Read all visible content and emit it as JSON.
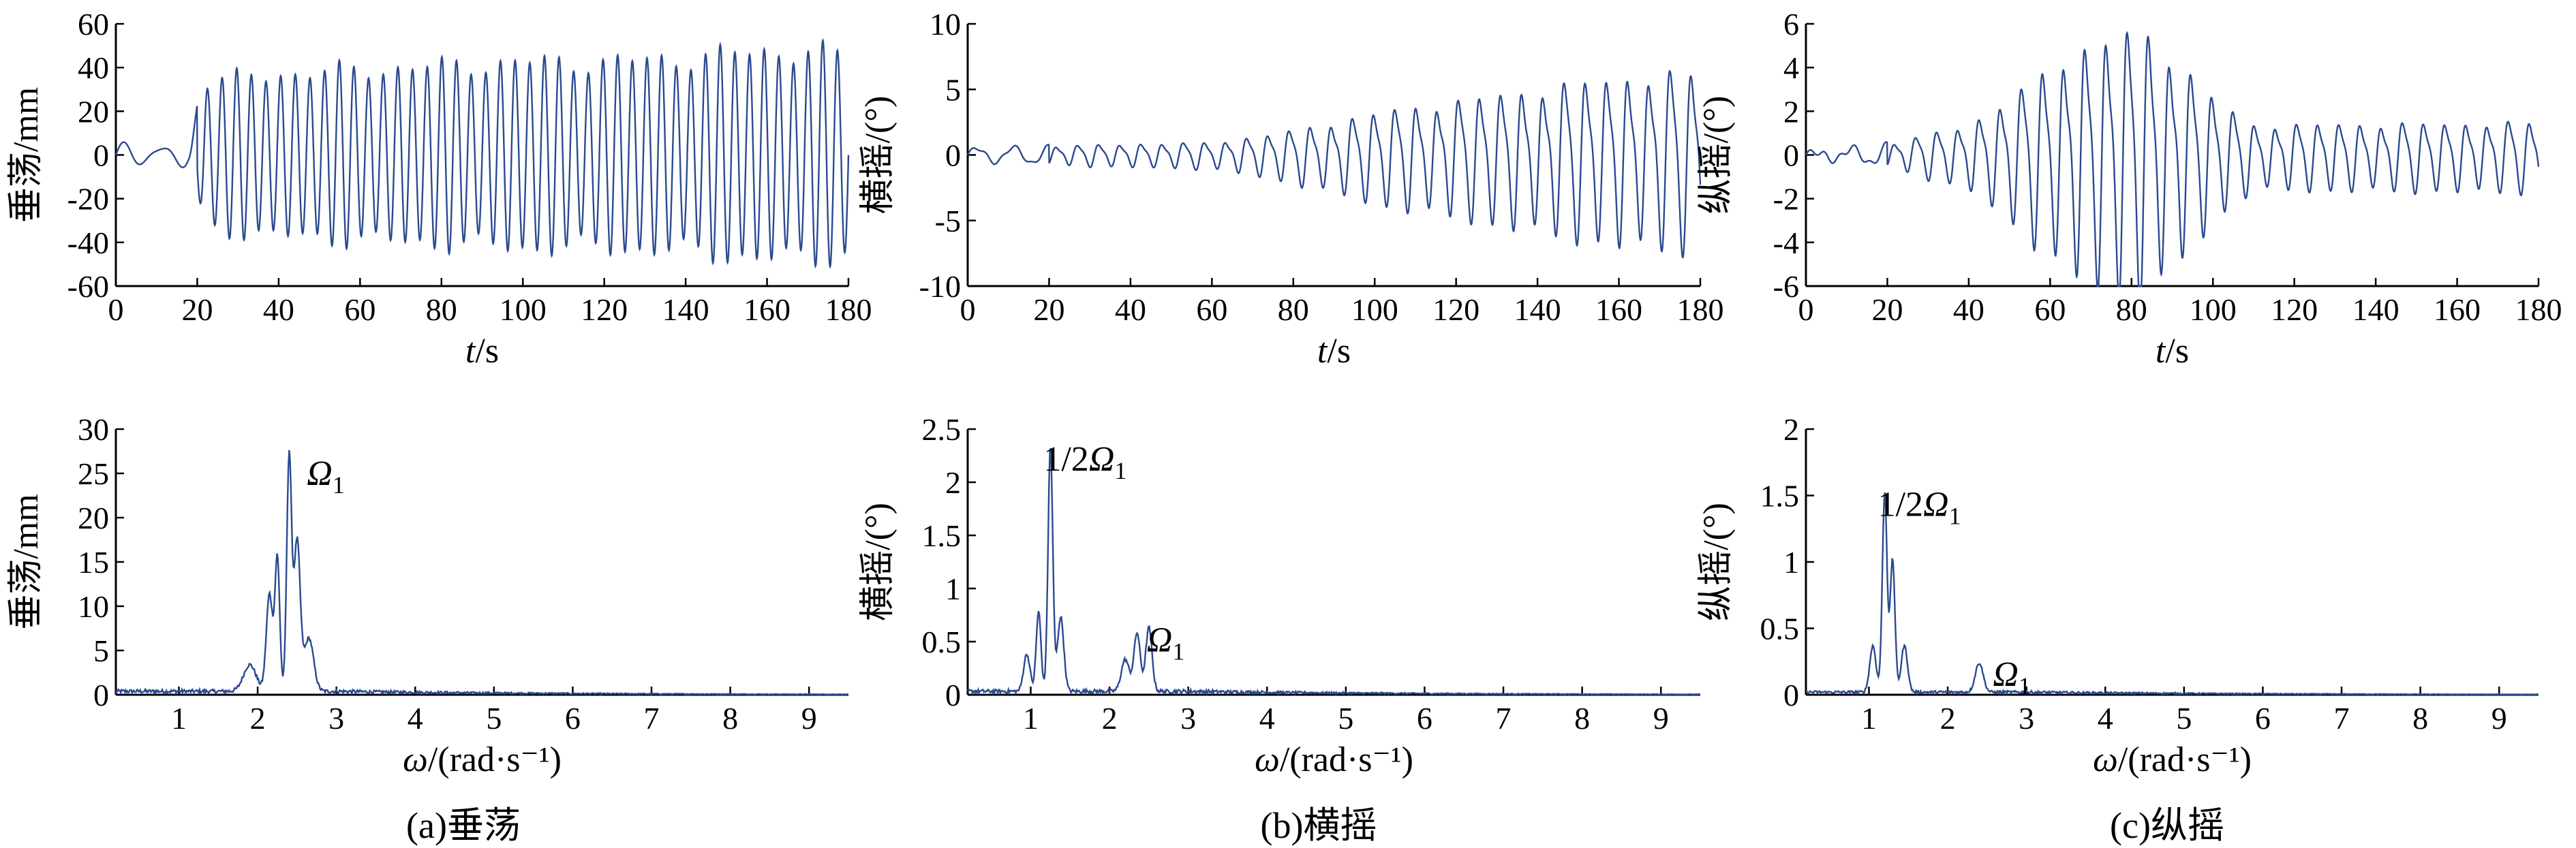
{
  "chart_data": [
    {
      "id": "heave-time",
      "type": "line",
      "x_range": [
        0,
        180
      ],
      "y_range": [
        -60,
        60
      ],
      "x_ticks": [
        "0",
        "20",
        "40",
        "60",
        "80",
        "100",
        "120",
        "140",
        "160",
        "180"
      ],
      "y_ticks": [
        "-60",
        "-40",
        "-20",
        "0",
        "20",
        "40",
        "60"
      ],
      "xlabel_italic": "t",
      "xlabel_rest": "/s",
      "ylabel": "垂荡/mm",
      "color": "#2b4a8f",
      "envelope": [
        [
          0,
          4
        ],
        [
          18,
          5
        ],
        [
          22,
          38
        ],
        [
          40,
          42
        ],
        [
          60,
          44
        ],
        [
          80,
          46
        ],
        [
          100,
          48
        ],
        [
          120,
          48
        ],
        [
          140,
          50
        ],
        [
          160,
          54
        ],
        [
          180,
          52
        ]
      ],
      "period": 3.6
    },
    {
      "id": "roll-time",
      "type": "line",
      "x_range": [
        0,
        180
      ],
      "y_range": [
        -10,
        10
      ],
      "x_ticks": [
        "0",
        "20",
        "40",
        "60",
        "80",
        "100",
        "120",
        "140",
        "160",
        "180"
      ],
      "y_ticks": [
        "-10",
        "-5",
        "0",
        "5",
        "10"
      ],
      "xlabel_italic": "t",
      "xlabel_rest": "/s",
      "ylabel": "横摇/(°)",
      "color": "#2b4a8f",
      "envelope": [
        [
          0,
          0.5
        ],
        [
          20,
          0.7
        ],
        [
          40,
          0.9
        ],
        [
          60,
          1.0
        ],
        [
          80,
          2.0
        ],
        [
          100,
          3.5
        ],
        [
          120,
          4.5
        ],
        [
          140,
          5.5
        ],
        [
          160,
          6.5
        ],
        [
          180,
          6.8
        ]
      ],
      "period": 5.2
    },
    {
      "id": "pitch-time",
      "type": "line",
      "x_range": [
        0,
        180
      ],
      "y_range": [
        -6,
        6
      ],
      "x_ticks": [
        "0",
        "20",
        "40",
        "60",
        "80",
        "100",
        "120",
        "140",
        "160",
        "180"
      ],
      "y_ticks": [
        "-6",
        "-4",
        "-2",
        "0",
        "2",
        "4",
        "6"
      ],
      "xlabel_italic": "t",
      "xlabel_rest": "/s",
      "ylabel": "纵摇/(°)",
      "color": "#2b4a8f",
      "envelope": [
        [
          0,
          0.1
        ],
        [
          20,
          0.5
        ],
        [
          40,
          1.5
        ],
        [
          55,
          3.5
        ],
        [
          65,
          5.2
        ],
        [
          75,
          6.0
        ],
        [
          85,
          6.0
        ],
        [
          95,
          4.0
        ],
        [
          102,
          2.5
        ],
        [
          110,
          1.5
        ],
        [
          180,
          1.6
        ]
      ],
      "period": 5.2
    },
    {
      "id": "heave-spectrum",
      "type": "line",
      "x_range": [
        0.2,
        9.5
      ],
      "y_range": [
        0,
        30
      ],
      "x_ticks": [
        "1",
        "2",
        "3",
        "4",
        "5",
        "6",
        "7",
        "8",
        "9"
      ],
      "y_ticks": [
        "0",
        "5",
        "10",
        "15",
        "20",
        "25",
        "30"
      ],
      "xlabel": "ω/(rad·s⁻¹)",
      "ylabel": "垂荡/mm",
      "color": "#2b4a8f",
      "peaks": [
        [
          1.9,
          3,
          0.08
        ],
        [
          2.15,
          11,
          0.04
        ],
        [
          2.25,
          15,
          0.03
        ],
        [
          2.4,
          26.5,
          0.03
        ],
        [
          2.5,
          17,
          0.04
        ],
        [
          2.65,
          6,
          0.06
        ]
      ],
      "noise": 0.6,
      "annotations": [
        {
          "x": 2.45,
          "y": 26,
          "text": "Ω",
          "sub": "1"
        }
      ]
    },
    {
      "id": "roll-spectrum",
      "type": "line",
      "x_range": [
        0.2,
        9.5
      ],
      "y_range": [
        0,
        2.5
      ],
      "x_ticks": [
        "1",
        "2",
        "3",
        "4",
        "5",
        "6",
        "7",
        "8",
        "9"
      ],
      "y_ticks": [
        "0",
        "0.5",
        "1",
        "1.5",
        "2",
        "2.5"
      ],
      "xlabel": "ω/(rad·s⁻¹)",
      "ylabel": "横摇/(°)",
      "color": "#2b4a8f",
      "peaks": [
        [
          0.95,
          0.35,
          0.04
        ],
        [
          1.1,
          0.75,
          0.03
        ],
        [
          1.25,
          2.3,
          0.03
        ],
        [
          1.38,
          0.7,
          0.04
        ],
        [
          2.2,
          0.3,
          0.05
        ],
        [
          2.35,
          0.55,
          0.04
        ],
        [
          2.5,
          0.6,
          0.04
        ]
      ],
      "noise": 0.05,
      "annotations": [
        {
          "x": 1.25,
          "y": 2.3,
          "text": "1/2Ω",
          "sub": "1"
        },
        {
          "x": 2.3,
          "y": 0.6,
          "text": "Ω",
          "sub": "1"
        }
      ]
    },
    {
      "id": "pitch-spectrum",
      "type": "line",
      "x_range": [
        0.2,
        9.5
      ],
      "y_range": [
        0,
        2
      ],
      "x_ticks": [
        "1",
        "2",
        "3",
        "4",
        "5",
        "6",
        "7",
        "8",
        "9"
      ],
      "y_ticks": [
        "0",
        "0.5",
        "1",
        "1.5",
        "2"
      ],
      "xlabel": "ω/(rad·s⁻¹)",
      "ylabel": "纵摇/(°)",
      "color": "#2b4a8f",
      "peaks": [
        [
          1.05,
          0.35,
          0.04
        ],
        [
          1.2,
          1.5,
          0.03
        ],
        [
          1.3,
          1.0,
          0.03
        ],
        [
          1.45,
          0.35,
          0.04
        ],
        [
          2.4,
          0.22,
          0.05
        ]
      ],
      "noise": 0.03,
      "annotations": [
        {
          "x": 1.2,
          "y": 1.5,
          "text": "1/2Ω",
          "sub": "1"
        },
        {
          "x": 2.4,
          "y": 0.22,
          "text": "Ω",
          "sub": "1"
        }
      ]
    }
  ],
  "captions": [
    "(a)垂荡",
    "(b)横摇",
    "(c)纵摇"
  ]
}
